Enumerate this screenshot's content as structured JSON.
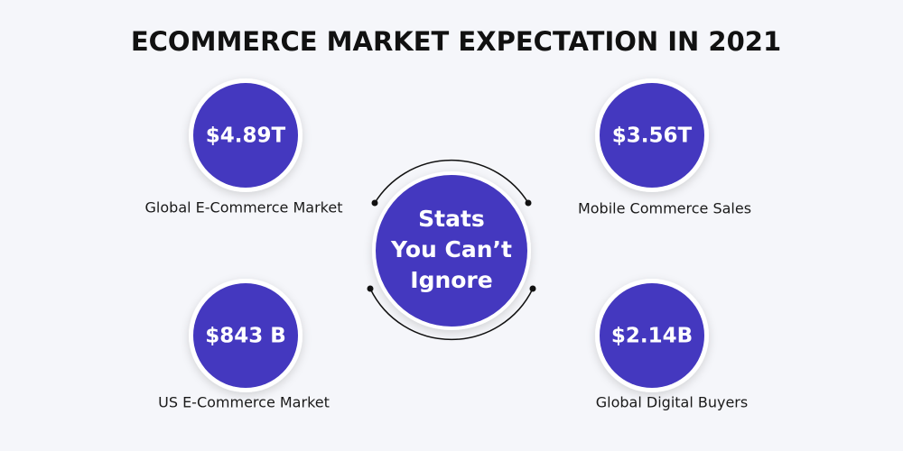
{
  "title": "ECOMMERCE MARKET EXPECTATION IN 2021",
  "center": {
    "lines": [
      "Stats",
      "You Can’t",
      "Ignore"
    ]
  },
  "stats": [
    {
      "value": "$4.89T",
      "label": "Global E-Commerce Market"
    },
    {
      "value": "$3.56T",
      "label": "Mobile Commerce Sales"
    },
    {
      "value": "$843 B",
      "label": "US E-Commerce Market"
    },
    {
      "value": "$2.14B",
      "label": "Global Digital Buyers"
    }
  ]
}
